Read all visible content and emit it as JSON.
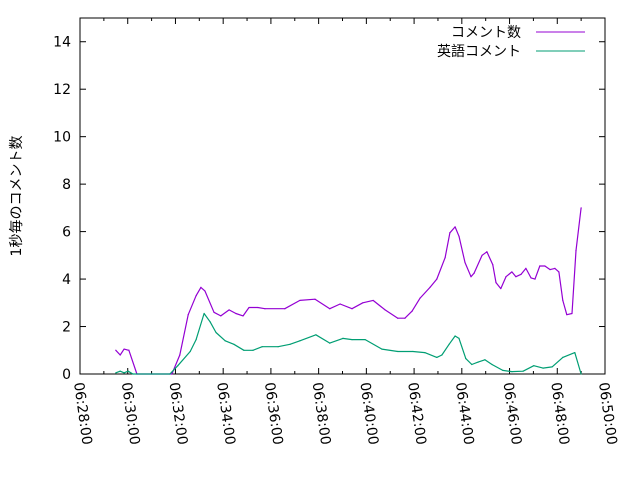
{
  "chart_data": {
    "type": "line",
    "title": "",
    "xlabel": "",
    "ylabel": "1秒毎のコメント数",
    "xlim": [
      "06:28:00",
      "06:50:00"
    ],
    "ylim": [
      0,
      15
    ],
    "xticks": [
      "06:28:00",
      "06:30:00",
      "06:32:00",
      "06:34:00",
      "06:36:00",
      "06:38:00",
      "06:40:00",
      "06:42:00",
      "06:44:00",
      "06:46:00",
      "06:48:00",
      "06:50:00"
    ],
    "yticks": [
      "0",
      "2",
      "4",
      "6",
      "8",
      "10",
      "12",
      "14"
    ],
    "grid": false,
    "legend_position": "top-right",
    "series": [
      {
        "name": "コメント数",
        "color": "#9400d3",
        "x": [
          "06:29:30",
          "06:29:41",
          "06:29:51",
          "06:30:03",
          "06:30:23",
          "06:31:51",
          "06:32:11",
          "06:32:32",
          "06:32:52",
          "06:33:04",
          "06:33:14",
          "06:33:37",
          "06:33:54",
          "06:34:15",
          "06:34:32",
          "06:34:50",
          "06:35:05",
          "06:35:27",
          "06:35:45",
          "06:36:35",
          "06:37:13",
          "06:37:51",
          "06:38:28",
          "06:38:54",
          "06:39:24",
          "06:39:51",
          "06:40:17",
          "06:40:47",
          "06:41:19",
          "06:41:37",
          "06:41:55",
          "06:42:15",
          "06:42:40",
          "06:42:57",
          "06:43:18",
          "06:43:30",
          "06:43:43",
          "06:43:53",
          "06:44:08",
          "06:44:23",
          "06:44:31",
          "06:44:51",
          "06:45:03",
          "06:45:18",
          "06:45:26",
          "06:45:38",
          "06:45:51",
          "06:46:06",
          "06:46:16",
          "06:46:29",
          "06:46:41",
          "06:46:54",
          "06:47:04",
          "06:47:16",
          "06:47:29",
          "06:47:42",
          "06:47:54",
          "06:48:04",
          "06:48:14",
          "06:48:24",
          "06:48:37",
          "06:48:47",
          "06:49:00"
        ],
        "y": [
          1.0,
          0.8,
          1.05,
          1.0,
          0,
          0,
          0.8,
          2.5,
          3.3,
          3.65,
          3.5,
          2.6,
          2.45,
          2.7,
          2.55,
          2.45,
          2.8,
          2.8,
          2.75,
          2.75,
          3.1,
          3.15,
          2.75,
          2.95,
          2.75,
          3.0,
          3.1,
          2.7,
          2.35,
          2.35,
          2.65,
          3.2,
          3.65,
          4.0,
          4.9,
          5.95,
          6.2,
          5.8,
          4.7,
          4.1,
          4.25,
          5.0,
          5.15,
          4.6,
          3.85,
          3.6,
          4.1,
          4.3,
          4.1,
          4.2,
          4.45,
          4.05,
          4.0,
          4.55,
          4.55,
          4.4,
          4.45,
          4.3,
          3.1,
          2.5,
          2.55,
          5.2,
          7.0
        ]
      },
      {
        "name": "英語コメント",
        "color": "#009e73",
        "x": [
          "06:29:30",
          "06:29:41",
          "06:29:51",
          "06:30:01",
          "06:30:13",
          "06:31:46",
          "06:32:06",
          "06:32:37",
          "06:32:52",
          "06:33:12",
          "06:33:27",
          "06:33:42",
          "06:34:05",
          "06:34:27",
          "06:34:52",
          "06:35:15",
          "06:35:38",
          "06:36:18",
          "06:36:48",
          "06:37:13",
          "06:37:53",
          "06:38:28",
          "06:39:01",
          "06:39:24",
          "06:39:57",
          "06:40:39",
          "06:41:19",
          "06:41:57",
          "06:42:27",
          "06:42:57",
          "06:43:10",
          "06:43:28",
          "06:43:43",
          "06:43:53",
          "06:44:10",
          "06:44:25",
          "06:44:41",
          "06:44:58",
          "06:45:16",
          "06:45:43",
          "06:46:06",
          "06:46:34",
          "06:47:01",
          "06:47:24",
          "06:47:47",
          "06:48:14",
          "06:48:44",
          "06:49:00"
        ],
        "y": [
          0.05,
          0.12,
          0.05,
          0.12,
          0,
          0,
          0.35,
          0.95,
          1.45,
          2.55,
          2.2,
          1.75,
          1.4,
          1.25,
          1.0,
          1.0,
          1.15,
          1.15,
          1.25,
          1.4,
          1.65,
          1.3,
          1.5,
          1.45,
          1.45,
          1.05,
          0.95,
          0.95,
          0.9,
          0.7,
          0.8,
          1.25,
          1.6,
          1.5,
          0.65,
          0.4,
          0.5,
          0.6,
          0.4,
          0.15,
          0.1,
          0.12,
          0.35,
          0.25,
          0.3,
          0.7,
          0.9,
          0
        ]
      }
    ]
  }
}
